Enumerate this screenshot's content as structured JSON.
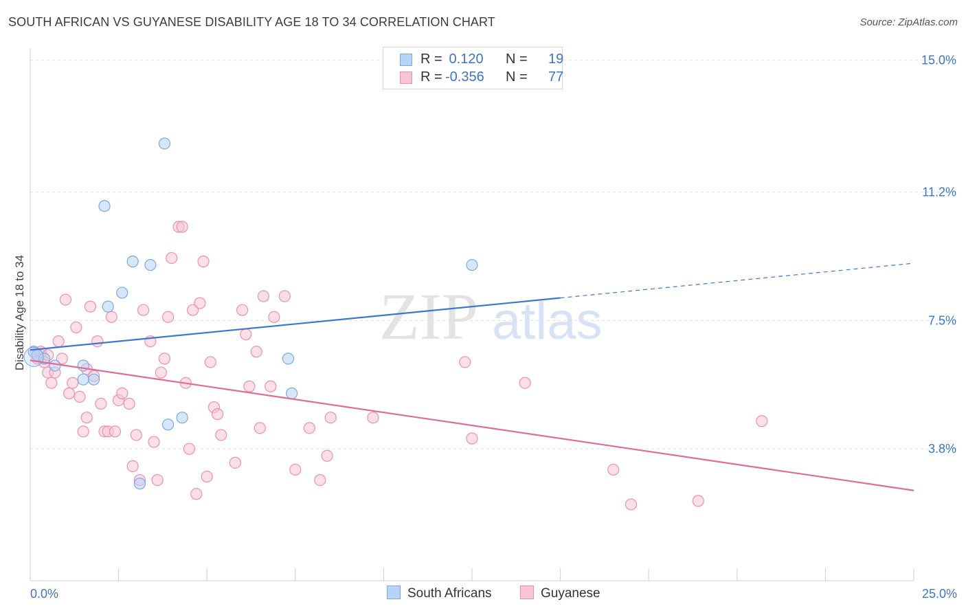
{
  "title": "SOUTH AFRICAN VS GUYANESE DISABILITY AGE 18 TO 34 CORRELATION CHART",
  "source": "Source: ZipAtlas.com",
  "watermark": {
    "zip": "ZIP",
    "atlas": "atlas"
  },
  "colors": {
    "blue_fill": "#b7d3f5",
    "blue_stroke": "#7aa8e0",
    "blue_line": "#3a78d0",
    "pink_fill": "#f9c4d4",
    "pink_stroke": "#ec8fae",
    "pink_line": "#e06b98",
    "value_text": "#3b74c8",
    "grid": "#e3e3e3"
  },
  "legend": {
    "rows": [
      {
        "r_label": "R =",
        "r_value": " 0.120",
        "n_label": "N =",
        "n_value": "19"
      },
      {
        "r_label": "R =",
        "r_value": "-0.356",
        "n_label": "N =",
        "n_value": "77"
      }
    ]
  },
  "bottom_legend": [
    "South Africans",
    "Guyanese"
  ],
  "chart_data": {
    "type": "scatter",
    "xlabel": "",
    "ylabel": "Disability Age 18 to 34",
    "xlim": [
      0,
      25
    ],
    "ylim": [
      0,
      15.35
    ],
    "x_tick_labels": [
      {
        "value": 0,
        "label": "0.0%"
      },
      {
        "value": 25,
        "label": "25.0%"
      }
    ],
    "y_tick_labels": [
      {
        "value": 3.8,
        "label": "3.8%"
      },
      {
        "value": 7.5,
        "label": "7.5%"
      },
      {
        "value": 11.2,
        "label": "11.2%"
      },
      {
        "value": 15.0,
        "label": "15.0%"
      }
    ],
    "x_minor_ticks": [
      2.5,
      5,
      7.5,
      10,
      12.5,
      15,
      17.5,
      20,
      22.5,
      25
    ],
    "grid": true,
    "legend_position": "top-center",
    "series": [
      {
        "name": "South Africans",
        "color": "#b7d3f5",
        "points": [
          [
            0.1,
            6.6
          ],
          [
            0.2,
            6.5
          ],
          [
            0.4,
            6.4
          ],
          [
            0.7,
            6.2
          ],
          [
            1.5,
            6.2
          ],
          [
            1.5,
            5.8
          ],
          [
            1.8,
            5.8
          ],
          [
            2.1,
            10.8
          ],
          [
            2.2,
            7.9
          ],
          [
            2.6,
            8.3
          ],
          [
            2.9,
            9.2
          ],
          [
            3.1,
            2.8
          ],
          [
            3.4,
            9.1
          ],
          [
            3.8,
            12.6
          ],
          [
            3.9,
            4.5
          ],
          [
            4.3,
            4.7
          ],
          [
            7.3,
            6.4
          ],
          [
            7.4,
            5.4
          ],
          [
            12.5,
            9.1
          ]
        ],
        "trend": {
          "x0": 0,
          "y0": 6.65,
          "x1": 15,
          "y1": 8.15,
          "dashed_to_x": 24.9,
          "dashed_to_y": 9.14
        }
      },
      {
        "name": "Guyanese",
        "color": "#f9c4d4",
        "points": [
          [
            0.1,
            6.6
          ],
          [
            0.2,
            6.4
          ],
          [
            0.3,
            6.5
          ],
          [
            0.4,
            6.3
          ],
          [
            0.5,
            6.0
          ],
          [
            0.6,
            5.7
          ],
          [
            0.7,
            6.0
          ],
          [
            0.8,
            6.9
          ],
          [
            0.9,
            6.4
          ],
          [
            1.0,
            8.1
          ],
          [
            1.1,
            5.4
          ],
          [
            1.2,
            5.7
          ],
          [
            1.3,
            7.3
          ],
          [
            1.4,
            5.3
          ],
          [
            1.5,
            4.3
          ],
          [
            1.6,
            4.7
          ],
          [
            1.6,
            6.1
          ],
          [
            1.7,
            7.9
          ],
          [
            1.8,
            5.9
          ],
          [
            1.9,
            6.9
          ],
          [
            2.0,
            5.1
          ],
          [
            2.1,
            4.3
          ],
          [
            2.2,
            4.3
          ],
          [
            2.3,
            7.6
          ],
          [
            2.4,
            4.3
          ],
          [
            2.5,
            5.2
          ],
          [
            2.6,
            5.4
          ],
          [
            2.8,
            5.1
          ],
          [
            2.9,
            3.3
          ],
          [
            3.0,
            4.2
          ],
          [
            3.2,
            7.8
          ],
          [
            3.4,
            6.9
          ],
          [
            3.5,
            4.0
          ],
          [
            3.6,
            2.9
          ],
          [
            3.7,
            6.0
          ],
          [
            3.8,
            6.4
          ],
          [
            3.9,
            7.6
          ],
          [
            4.0,
            9.3
          ],
          [
            4.2,
            10.2
          ],
          [
            4.3,
            10.2
          ],
          [
            4.4,
            5.7
          ],
          [
            4.5,
            3.8
          ],
          [
            4.6,
            7.8
          ],
          [
            4.7,
            2.5
          ],
          [
            4.8,
            8.0
          ],
          [
            4.9,
            9.2
          ],
          [
            5.0,
            3.0
          ],
          [
            5.1,
            6.3
          ],
          [
            5.2,
            5.0
          ],
          [
            5.3,
            4.8
          ],
          [
            5.4,
            4.2
          ],
          [
            5.8,
            3.4
          ],
          [
            6.0,
            7.8
          ],
          [
            6.1,
            7.1
          ],
          [
            6.2,
            5.6
          ],
          [
            6.4,
            6.6
          ],
          [
            6.5,
            4.4
          ],
          [
            6.6,
            8.2
          ],
          [
            6.8,
            5.6
          ],
          [
            6.9,
            7.6
          ],
          [
            7.2,
            8.2
          ],
          [
            7.5,
            3.2
          ],
          [
            7.9,
            4.4
          ],
          [
            8.2,
            2.9
          ],
          [
            8.4,
            3.6
          ],
          [
            8.5,
            4.7
          ],
          [
            9.7,
            4.7
          ],
          [
            12.3,
            6.3
          ],
          [
            12.5,
            4.1
          ],
          [
            14.0,
            5.7
          ],
          [
            16.5,
            3.2
          ],
          [
            17.0,
            2.2
          ],
          [
            18.9,
            2.3
          ],
          [
            20.7,
            4.6
          ],
          [
            0.3,
            6.6
          ],
          [
            0.5,
            6.5
          ],
          [
            3.1,
            2.9
          ]
        ],
        "trend": {
          "x0": 0,
          "y0": 6.35,
          "x1": 25,
          "y1": 2.6
        }
      }
    ]
  }
}
